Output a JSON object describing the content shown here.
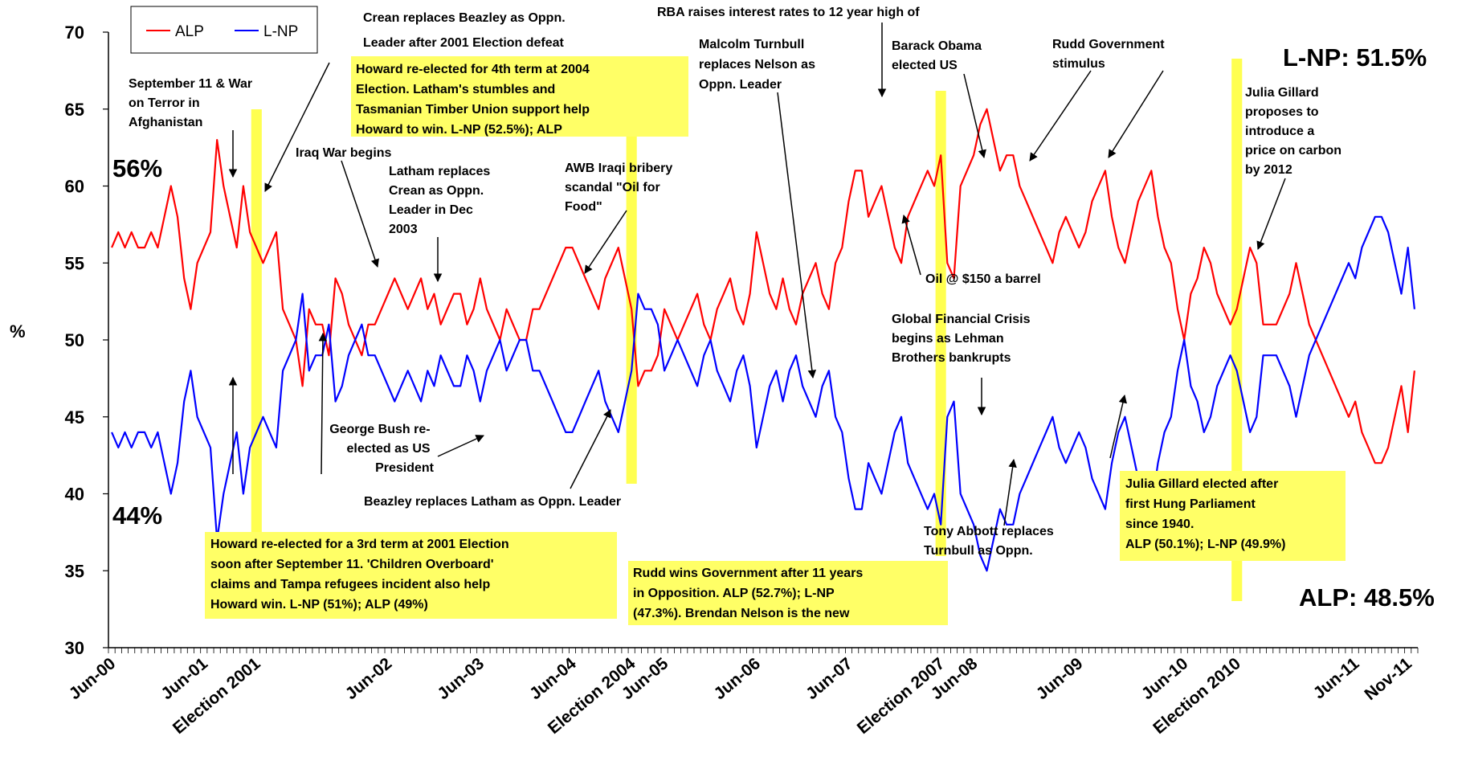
{
  "chart_data": {
    "type": "line",
    "ylabel": "%",
    "ylim": [
      30,
      70
    ],
    "y_ticks": [
      "30",
      "35",
      "40",
      "45",
      "50",
      "55",
      "60",
      "65",
      "70"
    ],
    "x_tick_labels": [
      "Jun-00",
      "Jun-01",
      "Election 2001",
      "Jun-02",
      "Jun-03",
      "Jun-04",
      "Election 2004",
      "Jun-05",
      "Jun-06",
      "Jun-07",
      "Election 2007",
      "Jun-08",
      "Jun-09",
      "Jun-10",
      "Election 2010",
      "Jun-11",
      "Nov-11"
    ],
    "x_tick_index": [
      0,
      14,
      22,
      42,
      56,
      70,
      79,
      84,
      98,
      112,
      126,
      131,
      147,
      163,
      171,
      189,
      197
    ],
    "legend": {
      "placement": "top-left",
      "items": [
        {
          "name": "ALP",
          "color": "#ff0000"
        },
        {
          "name": "L-NP",
          "color": "#0000ff"
        }
      ]
    },
    "series": [
      {
        "name": "ALP",
        "color": "#ff0000",
        "values": [
          56,
          57,
          56,
          57,
          56,
          56,
          57,
          56,
          58,
          60,
          58,
          54,
          52,
          55,
          56,
          57,
          63,
          60,
          58,
          56,
          60,
          57,
          56,
          55,
          56,
          57,
          52,
          51,
          50,
          47,
          52,
          51,
          51,
          49,
          54,
          53,
          51,
          50,
          49,
          51,
          51,
          52,
          53,
          54,
          53,
          52,
          53,
          54,
          52,
          53,
          51,
          52,
          53,
          53,
          51,
          52,
          54,
          52,
          51,
          50,
          52,
          51,
          50,
          50,
          52,
          52,
          53,
          54,
          55,
          56,
          56,
          55,
          54,
          53,
          52,
          54,
          55,
          56,
          54,
          52,
          47,
          48,
          48,
          49,
          52,
          51,
          50,
          51,
          52,
          53,
          51,
          50,
          52,
          53,
          54,
          52,
          51,
          53,
          57,
          55,
          53,
          52,
          54,
          52,
          51,
          53,
          54,
          55,
          53,
          52,
          55,
          56,
          59,
          61,
          61,
          58,
          59,
          60,
          58,
          56,
          55,
          58,
          59,
          60,
          61,
          60,
          62,
          55,
          54,
          60,
          61,
          62,
          64,
          65,
          63,
          61,
          62,
          62,
          60,
          59,
          58,
          57,
          56,
          55,
          57,
          58,
          57,
          56,
          57,
          59,
          60,
          61,
          58,
          56,
          55,
          57,
          59,
          60,
          61,
          58,
          56,
          55,
          52,
          50,
          53,
          54,
          56,
          55,
          53,
          52,
          51,
          52,
          54,
          56,
          55,
          51,
          51,
          51,
          52,
          53,
          55,
          53,
          51,
          50,
          49,
          48,
          47,
          46,
          45,
          46,
          44,
          43,
          42,
          42,
          43,
          45,
          47,
          44,
          48
        ]
      },
      {
        "name": "L-NP",
        "color": "#0000ff",
        "values": [
          44,
          43,
          44,
          43,
          44,
          44,
          43,
          44,
          42,
          40,
          42,
          46,
          48,
          45,
          44,
          43,
          37,
          40,
          42,
          44,
          40,
          43,
          44,
          45,
          44,
          43,
          48,
          49,
          50,
          53,
          48,
          49,
          49,
          51,
          46,
          47,
          49,
          50,
          51,
          49,
          49,
          48,
          47,
          46,
          47,
          48,
          47,
          46,
          48,
          47,
          49,
          48,
          47,
          47,
          49,
          48,
          46,
          48,
          49,
          50,
          48,
          49,
          50,
          50,
          48,
          48,
          47,
          46,
          45,
          44,
          44,
          45,
          46,
          47,
          48,
          46,
          45,
          44,
          46,
          48,
          53,
          52,
          52,
          51,
          48,
          49,
          50,
          49,
          48,
          47,
          49,
          50,
          48,
          47,
          46,
          48,
          49,
          47,
          43,
          45,
          47,
          48,
          46,
          48,
          49,
          47,
          46,
          45,
          47,
          48,
          45,
          44,
          41,
          39,
          39,
          42,
          41,
          40,
          42,
          44,
          45,
          42,
          41,
          40,
          39,
          40,
          38,
          45,
          46,
          40,
          39,
          38,
          36,
          35,
          37,
          39,
          38,
          38,
          40,
          41,
          42,
          43,
          44,
          45,
          43,
          42,
          43,
          44,
          43,
          41,
          40,
          39,
          42,
          44,
          45,
          43,
          41,
          40,
          39,
          42,
          44,
          45,
          48,
          50,
          47,
          46,
          44,
          45,
          47,
          48,
          49,
          48,
          46,
          44,
          45,
          49,
          49,
          49,
          48,
          47,
          45,
          47,
          49,
          50,
          51,
          52,
          53,
          54,
          55,
          54,
          56,
          57,
          58,
          58,
          57,
          55,
          53,
          56,
          52
        ]
      }
    ],
    "highlight_index": [
      22,
      79,
      126,
      171
    ],
    "end_labels": {
      "lnp": "L-NP: 51.5%",
      "alp": "ALP: 48.5%"
    },
    "start_labels": {
      "alp": "56%",
      "lnp": "44%"
    }
  },
  "annotations": {
    "crean": [
      "Crean replaces Beazley as Oppn.",
      "Leader after 2001 Election defeat"
    ],
    "rba": [
      "RBA raises interest rates to 12 year high of"
    ],
    "sep11": [
      "September 11 & War",
      "on Terror in",
      "Afghanistan"
    ],
    "howard2004": [
      "Howard re-elected for 4th term at 2004",
      "Election. Latham's stumbles and",
      "Tasmanian Timber Union support help",
      "Howard to win. L-NP (52.5%); ALP"
    ],
    "turnbull": [
      "Malcolm Turnbull",
      "replaces Nelson as",
      "Oppn. Leader"
    ],
    "obama": [
      "Barack Obama",
      "elected US"
    ],
    "rudd_stim": [
      "Rudd Government",
      "stimulus"
    ],
    "iraq": [
      "Iraq War begins"
    ],
    "latham": [
      "Latham replaces",
      "Crean as Oppn.",
      "Leader in Dec",
      "2003"
    ],
    "awb": [
      "AWB Iraqi bribery",
      "scandal \"Oil for",
      "Food\""
    ],
    "gillard_carbon": [
      "Julia Gillard",
      "proposes to",
      "introduce a",
      "price on carbon",
      "by 2012"
    ],
    "oil": [
      "Oil @ $150 a barrel"
    ],
    "gfc": [
      "Global Financial Crisis",
      "begins as Lehman",
      "Brothers bankrupts"
    ],
    "bush": [
      "George Bush re-",
      "elected as US",
      "President"
    ],
    "beazley": [
      "Beazley replaces  Latham as  Oppn. Leader"
    ],
    "abbott": [
      "Tony Abbott replaces",
      "Turnbull as Oppn."
    ],
    "howard2001": [
      "Howard re-elected for a 3rd term at 2001 Election",
      "soon after September 11. 'Children Overboard'",
      "claims and Tampa refugees incident also help",
      "Howard win. L-NP (51%); ALP (49%)"
    ],
    "rudd2007": [
      "Rudd wins Government after 11 years",
      "in Opposition. ALP (52.7%); L-NP",
      "(47.3%). Brendan Nelson is the new"
    ],
    "gillard2010": [
      "Julia Gillard elected after",
      "first Hung Parliament",
      "since 1940.",
      "ALP (50.1%); L-NP (49.9%)"
    ]
  }
}
